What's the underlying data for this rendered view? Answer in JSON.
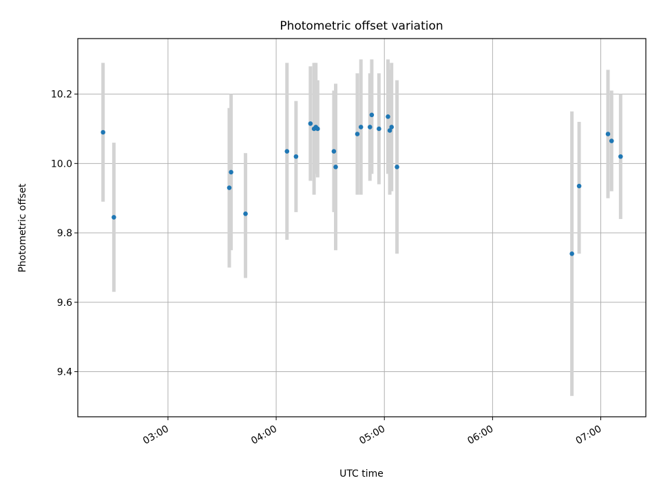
{
  "chart_data": {
    "type": "scatter",
    "title": "Photometric offset variation",
    "xlabel": "UTC time",
    "ylabel": "Photometric offset",
    "x_axis_type": "time",
    "xlim": [
      "02:10",
      "07:25"
    ],
    "ylim": [
      9.27,
      10.36
    ],
    "x_ticks": [
      "03:00",
      "04:00",
      "05:00",
      "06:00",
      "07:00"
    ],
    "y_ticks": [
      9.4,
      9.6,
      9.8,
      10.0,
      10.2
    ],
    "y_tick_labels": [
      "9.4",
      "9.6",
      "9.8",
      "10.0",
      "10.2"
    ],
    "grid": true,
    "legend": "none",
    "colors": {
      "point": "#1f77b4",
      "error_bar": "#d3d3d3",
      "grid": "#b0b0b0"
    },
    "series": [
      {
        "points": [
          {
            "x": "02:24",
            "y": 10.09,
            "err_low": 9.89,
            "err_high": 10.29
          },
          {
            "x": "02:30",
            "y": 9.845,
            "err_low": 9.63,
            "err_high": 10.06
          },
          {
            "x": "03:34",
            "y": 9.93,
            "err_low": 9.7,
            "err_high": 10.16
          },
          {
            "x": "03:35",
            "y": 9.975,
            "err_low": 9.75,
            "err_high": 10.2
          },
          {
            "x": "03:43",
            "y": 9.855,
            "err_low": 9.67,
            "err_high": 10.03
          },
          {
            "x": "04:06",
            "y": 10.035,
            "err_low": 9.78,
            "err_high": 10.29
          },
          {
            "x": "04:11",
            "y": 10.02,
            "err_low": 9.86,
            "err_high": 10.18
          },
          {
            "x": "04:19",
            "y": 10.115,
            "err_low": 9.95,
            "err_high": 10.28
          },
          {
            "x": "04:21",
            "y": 10.1,
            "err_low": 9.91,
            "err_high": 10.29
          },
          {
            "x": "04:22",
            "y": 10.105,
            "err_low": 9.97,
            "err_high": 10.29
          },
          {
            "x": "04:23",
            "y": 10.1,
            "err_low": 9.96,
            "err_high": 10.24
          },
          {
            "x": "04:32",
            "y": 10.035,
            "err_low": 9.86,
            "err_high": 10.21
          },
          {
            "x": "04:33",
            "y": 9.99,
            "err_low": 9.75,
            "err_high": 10.23
          },
          {
            "x": "04:45",
            "y": 10.085,
            "err_low": 9.91,
            "err_high": 10.26
          },
          {
            "x": "04:47",
            "y": 10.105,
            "err_low": 9.91,
            "err_high": 10.3
          },
          {
            "x": "04:52",
            "y": 10.105,
            "err_low": 9.95,
            "err_high": 10.26
          },
          {
            "x": "04:53",
            "y": 10.14,
            "err_low": 9.97,
            "err_high": 10.3
          },
          {
            "x": "04:57",
            "y": 10.1,
            "err_low": 9.94,
            "err_high": 10.26
          },
          {
            "x": "05:02",
            "y": 10.135,
            "err_low": 9.97,
            "err_high": 10.3
          },
          {
            "x": "05:03",
            "y": 10.095,
            "err_low": 9.91,
            "err_high": 10.27
          },
          {
            "x": "05:04",
            "y": 10.105,
            "err_low": 9.92,
            "err_high": 10.29
          },
          {
            "x": "05:07",
            "y": 9.99,
            "err_low": 9.74,
            "err_high": 10.24
          },
          {
            "x": "06:44",
            "y": 9.74,
            "err_low": 9.33,
            "err_high": 10.15
          },
          {
            "x": "06:48",
            "y": 9.935,
            "err_low": 9.74,
            "err_high": 10.12
          },
          {
            "x": "07:04",
            "y": 10.085,
            "err_low": 9.9,
            "err_high": 10.27
          },
          {
            "x": "07:06",
            "y": 10.065,
            "err_low": 9.92,
            "err_high": 10.21
          },
          {
            "x": "07:11",
            "y": 10.02,
            "err_low": 9.84,
            "err_high": 10.2
          }
        ]
      }
    ]
  }
}
